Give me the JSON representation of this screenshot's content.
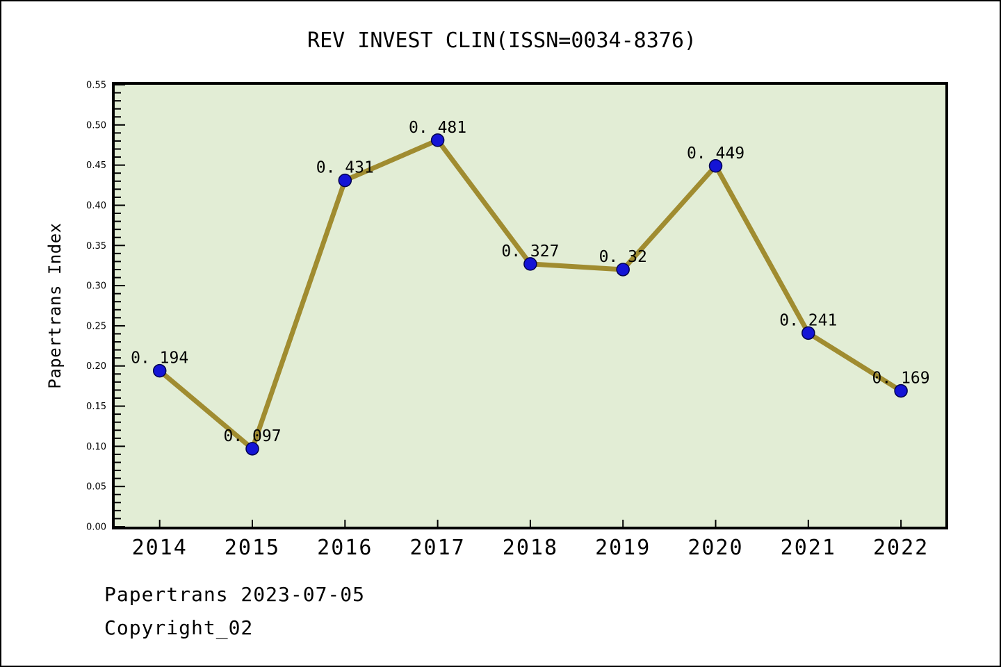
{
  "title": "REV INVEST CLIN(ISSN=0034-8376)",
  "footer": {
    "line1": "Papertrans 2023-07-05",
    "line2": "Copyright_02"
  },
  "chart_data": {
    "type": "line",
    "title": "REV INVEST CLIN(ISSN=0034-8376)",
    "xlabel": "",
    "ylabel": "Papertrans Index",
    "categories": [
      "2014",
      "2015",
      "2016",
      "2017",
      "2018",
      "2019",
      "2020",
      "2021",
      "2022"
    ],
    "values": [
      0.194,
      0.097,
      0.431,
      0.481,
      0.327,
      0.32,
      0.449,
      0.241,
      0.169
    ],
    "point_labels": [
      "0. 194",
      "0. 097",
      "0. 431",
      "0. 481",
      "0. 327",
      "0. 32",
      "0. 449",
      "0. 241",
      "0. 169"
    ],
    "ylim": [
      0,
      0.55
    ],
    "y_tick_step": 0.05,
    "y_minor_tick_step": 0.01,
    "y_tick_labels": [
      "0.00",
      "0.05",
      "0.10",
      "0.15",
      "0.20",
      "0.25",
      "0.30",
      "0.35",
      "0.40",
      "0.45",
      "0.50",
      "0.55"
    ],
    "grid": false,
    "legend": "none",
    "colors": {
      "line": "#a08c30",
      "marker": "#1414d6",
      "marker_edge": "#00004d",
      "plot_bg": "#e2edd5",
      "frame": "#000000",
      "text": "#000000"
    }
  }
}
